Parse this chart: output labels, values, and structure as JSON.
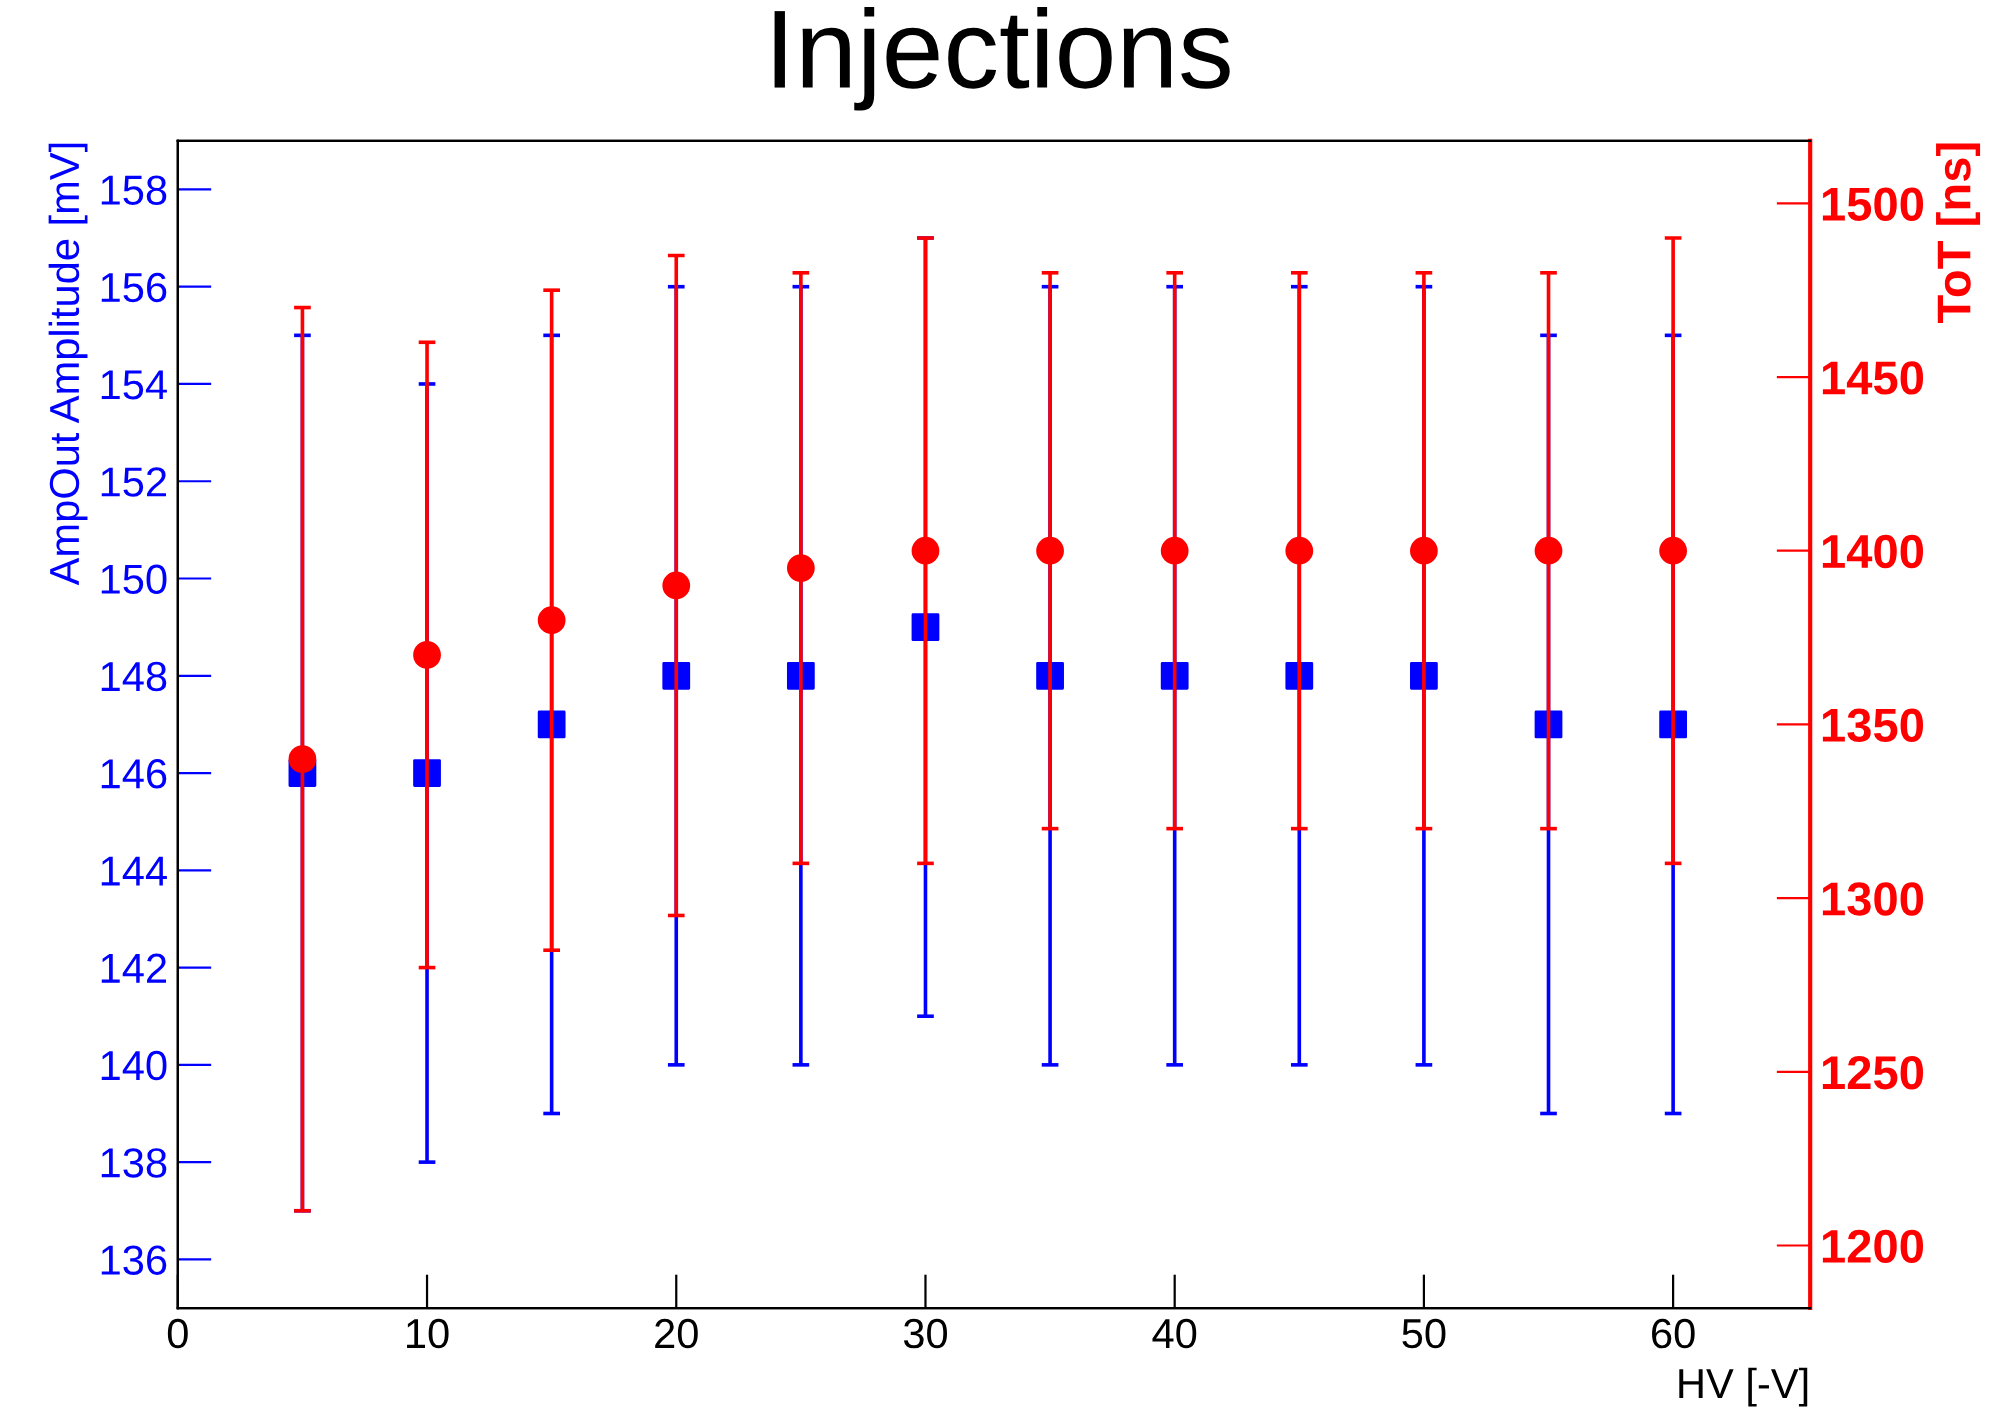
{
  "chart_data": {
    "type": "scatter",
    "title": "Injections",
    "xlabel": "HV [-V]",
    "ylabel": "AmpOut Amplitude [mV]",
    "y2label": "ToT [ns]",
    "x": [
      5,
      10,
      15,
      20,
      25,
      30,
      35,
      40,
      45,
      50,
      55,
      60
    ],
    "series": [
      {
        "color": "#0000ff",
        "marker": "square",
        "axis": "y",
        "values": [
          146,
          146,
          147,
          148,
          148,
          149,
          148,
          148,
          148,
          148,
          147,
          147
        ],
        "errors": [
          9,
          8,
          8,
          8,
          8,
          8,
          8,
          8,
          8,
          8,
          8,
          8
        ]
      },
      {
        "color": "#ff0000",
        "marker": "circle",
        "axis": "y2",
        "values": [
          1340,
          1370,
          1380,
          1390,
          1395,
          1400,
          1400,
          1400,
          1400,
          1400,
          1400,
          1400
        ],
        "errors": [
          130,
          90,
          95,
          95,
          85,
          90,
          80,
          80,
          80,
          80,
          80,
          90
        ]
      }
    ],
    "xlim": [
      0,
      65.5
    ],
    "xticks": [
      0,
      10,
      20,
      30,
      40,
      50,
      60
    ],
    "ylim": [
      135,
      159
    ],
    "yticks": [
      136,
      138,
      140,
      142,
      144,
      146,
      148,
      150,
      152,
      154,
      156,
      158
    ],
    "y2lim": [
      1182,
      1518
    ],
    "y2ticks": [
      1200,
      1250,
      1300,
      1350,
      1400,
      1450,
      1500
    ],
    "grid": false,
    "legend": false
  }
}
